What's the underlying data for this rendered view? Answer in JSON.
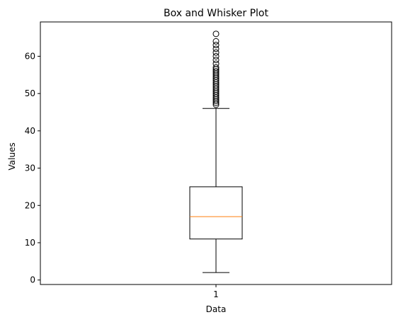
{
  "chart_data": {
    "type": "box",
    "title": "Box and Whisker Plot",
    "xlabel": "Data",
    "ylabel": "Values",
    "categories": [
      "1"
    ],
    "ylim": [
      -1.2,
      69.2
    ],
    "yticks": [
      0,
      10,
      20,
      30,
      40,
      50,
      60
    ],
    "box": {
      "whisker_low": 2,
      "q1": 11,
      "median": 17,
      "q3": 25,
      "whisker_high": 46
    },
    "outliers": [
      47,
      47.5,
      48,
      48.5,
      49,
      49.5,
      50,
      50.5,
      51,
      51.5,
      52,
      52.5,
      53,
      53.5,
      54,
      54.5,
      55,
      55.5,
      56,
      56.5,
      57,
      58,
      59,
      60,
      61,
      62,
      63,
      64,
      66
    ],
    "colors": {
      "box": "#000000",
      "median": "#ff7f0e",
      "outlier": "#000000"
    },
    "grid": false,
    "legend": "none"
  }
}
